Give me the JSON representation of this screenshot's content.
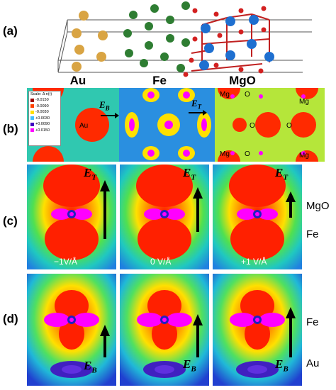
{
  "panels": {
    "a": "(a)",
    "b": "(b)",
    "c": "(c)",
    "d": "(d)"
  },
  "sections": {
    "au": "Au",
    "fe": "Fe",
    "mgo": "MgO"
  },
  "fields": {
    "eb": "E",
    "eb_sub": "B",
    "et": "E",
    "et_sub": "T"
  },
  "atoms": {
    "au": "Au",
    "mg": "Mg",
    "o": "O"
  },
  "legend": {
    "title": "Scale:  Δ n(r)",
    "entries": [
      {
        "label": "-0.0150",
        "color": "#a00000"
      },
      {
        "label": "-0.0090",
        "color": "#ff4000"
      },
      {
        "label": "-0.0030",
        "color": "#ffe000"
      },
      {
        "label": "+0.0030",
        "color": "#40c0ff"
      },
      {
        "label": "+0.0090",
        "color": "#4000c0"
      },
      {
        "label": "+0.0150",
        "color": "#ff00ff"
      }
    ]
  },
  "side_labels": {
    "c_top": "MgO",
    "c_bottom": "Fe",
    "d_top": "Fe",
    "d_bottom": "Au"
  },
  "voltages": [
    "−1V/Å",
    "0 V/Å",
    "+1 V/Å"
  ]
}
